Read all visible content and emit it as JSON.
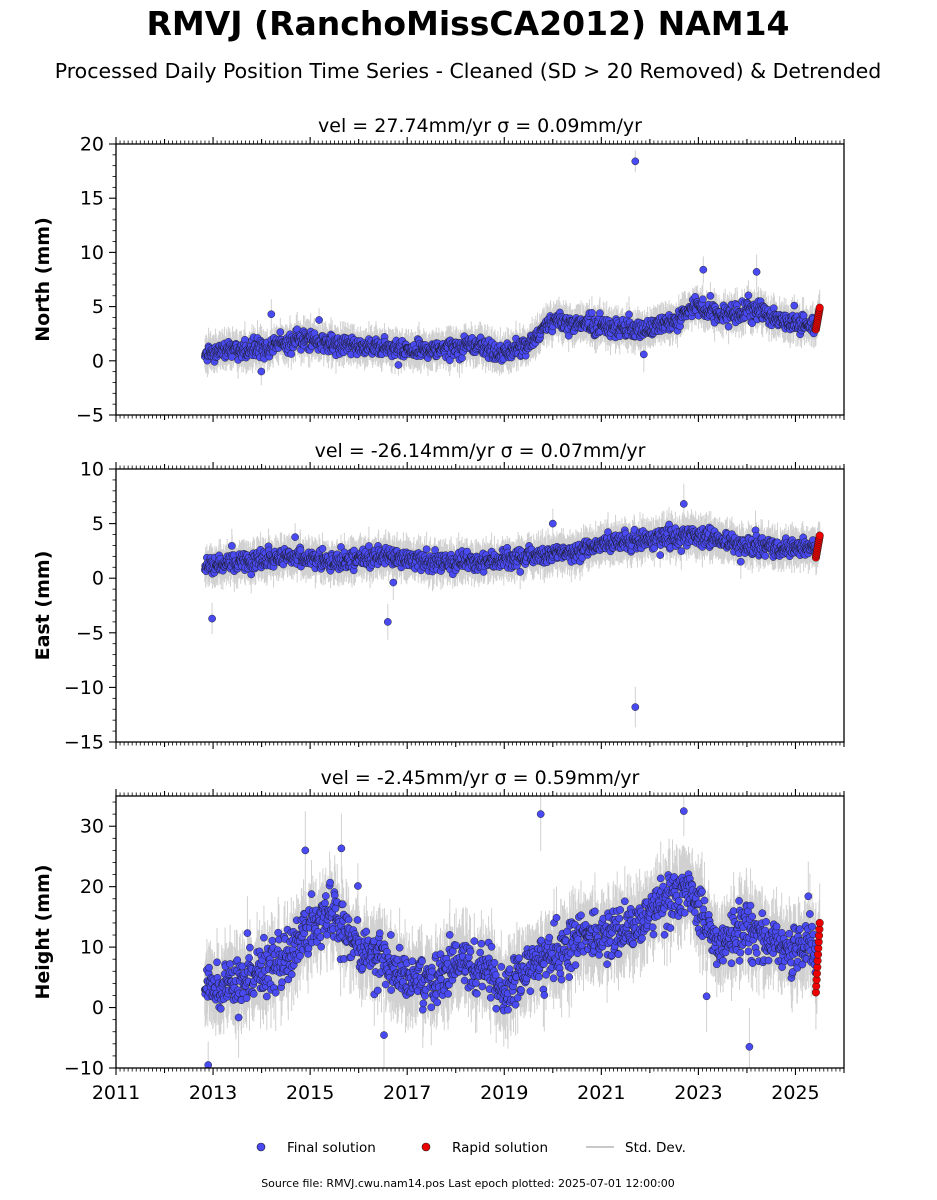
{
  "figure": {
    "title": "RMVJ (RanchoMissCA2012) NAM14",
    "subtitle": "Processed Daily Position Time Series - Cleaned (SD > 20 Removed) & Detrended",
    "footer": "Source file: RMVJ.cwu.nam14.pos  Last epoch plotted: 2025-07-01 12:00:00"
  },
  "legend": {
    "placement": "bottom-center",
    "items": [
      {
        "label": "Final solution",
        "color": "#4a4af2",
        "marker": "circle"
      },
      {
        "label": "Rapid solution",
        "color": "#ee0000",
        "marker": "circle"
      },
      {
        "label": "Std. Dev.",
        "color": "#c8c8c8",
        "marker": "line"
      }
    ]
  },
  "colors": {
    "final": "#4a4af2",
    "rapid": "#ee0000",
    "errorbar": "#9a9a9a",
    "marker_edge": "#1a1a1a",
    "axes": "#000000"
  },
  "chart_data": [
    {
      "type": "scatter",
      "panel": "north",
      "title_vel": "vel = 27.74mm/yr",
      "title_sigma": "σ = 0.09mm/yr",
      "ylabel": "North (mm)",
      "xlim": [
        2011,
        2026
      ],
      "ylim": [
        -5,
        20
      ],
      "yticks": [
        -5,
        0,
        5,
        10,
        15,
        20
      ],
      "grid": false,
      "series": [
        {
          "name": "Final solution",
          "segments": [
            {
              "x": 2012.83,
              "y": 0.5
            },
            {
              "x": 2013.5,
              "y": 1.2
            },
            {
              "x": 2014.0,
              "y": 1.0
            },
            {
              "x": 2014.8,
              "y": 2.0
            },
            {
              "x": 2015.5,
              "y": 1.5
            },
            {
              "x": 2016.5,
              "y": 1.2
            },
            {
              "x": 2017.5,
              "y": 1.0
            },
            {
              "x": 2018.5,
              "y": 1.5
            },
            {
              "x": 2018.9,
              "y": 0.5
            },
            {
              "x": 2019.6,
              "y": 1.8
            },
            {
              "x": 2019.9,
              "y": 3.5
            },
            {
              "x": 2020.5,
              "y": 3.5
            },
            {
              "x": 2021.3,
              "y": 3.0
            },
            {
              "x": 2021.8,
              "y": 3.0
            },
            {
              "x": 2022.5,
              "y": 3.5
            },
            {
              "x": 2022.9,
              "y": 5.0
            },
            {
              "x": 2023.5,
              "y": 4.2
            },
            {
              "x": 2024.2,
              "y": 4.8
            },
            {
              "x": 2024.8,
              "y": 3.5
            },
            {
              "x": 2025.42,
              "y": 3.2
            }
          ],
          "spread": 0.9,
          "count": 1450,
          "outliers": [
            {
              "x": 2021.7,
              "y": 18.4
            },
            {
              "x": 2023.1,
              "y": 8.4
            },
            {
              "x": 2024.2,
              "y": 8.2
            },
            {
              "x": 2014.2,
              "y": 4.3
            }
          ]
        },
        {
          "name": "Rapid solution",
          "x_range": [
            2025.42,
            2025.5
          ],
          "y_range": [
            2.9,
            4.9
          ],
          "count": 12
        }
      ],
      "std_dev": {
        "typical": 1.3
      }
    },
    {
      "type": "scatter",
      "panel": "east",
      "title_vel": "vel = -26.14mm/yr",
      "title_sigma": "σ = 0.07mm/yr",
      "ylabel": "East (mm)",
      "xlim": [
        2011,
        2026
      ],
      "ylim": [
        -15,
        10
      ],
      "yticks": [
        -15,
        -10,
        -5,
        0,
        5,
        10
      ],
      "grid": false,
      "series": [
        {
          "name": "Final solution",
          "segments": [
            {
              "x": 2012.83,
              "y": 1.0
            },
            {
              "x": 2013.5,
              "y": 1.5
            },
            {
              "x": 2014.5,
              "y": 2.0
            },
            {
              "x": 2015.5,
              "y": 1.5
            },
            {
              "x": 2016.5,
              "y": 2.0
            },
            {
              "x": 2017.5,
              "y": 1.5
            },
            {
              "x": 2018.5,
              "y": 1.5
            },
            {
              "x": 2019.5,
              "y": 2.0
            },
            {
              "x": 2020.5,
              "y": 2.5
            },
            {
              "x": 2021.0,
              "y": 3.2
            },
            {
              "x": 2022.0,
              "y": 3.5
            },
            {
              "x": 2023.0,
              "y": 3.8
            },
            {
              "x": 2024.0,
              "y": 3.0
            },
            {
              "x": 2024.8,
              "y": 2.8
            },
            {
              "x": 2025.42,
              "y": 2.8
            }
          ],
          "spread": 0.9,
          "count": 1450,
          "outliers": [
            {
              "x": 2021.7,
              "y": -11.8
            },
            {
              "x": 2012.98,
              "y": -3.7
            },
            {
              "x": 2016.6,
              "y": -4.0
            },
            {
              "x": 2022.7,
              "y": 6.8
            },
            {
              "x": 2020.0,
              "y": 5.0
            }
          ]
        },
        {
          "name": "Rapid solution",
          "x_range": [
            2025.42,
            2025.5
          ],
          "y_range": [
            1.9,
            3.9
          ],
          "count": 12
        }
      ],
      "std_dev": {
        "typical": 1.4
      }
    },
    {
      "type": "scatter",
      "panel": "height",
      "title_vel": "vel = -2.45mm/yr",
      "title_sigma": "σ = 0.59mm/yr",
      "ylabel": "Height (mm)",
      "xlim": [
        2011,
        2026
      ],
      "ylim": [
        -10,
        35
      ],
      "yticks": [
        -10,
        0,
        10,
        20,
        30
      ],
      "xticks": [
        "2011",
        "2013",
        "2015",
        "2017",
        "2019",
        "2021",
        "2023",
        "2025"
      ],
      "grid": false,
      "series": [
        {
          "name": "Final solution",
          "segments": [
            {
              "x": 2012.83,
              "y": 3.0
            },
            {
              "x": 2013.5,
              "y": 4.0
            },
            {
              "x": 2014.5,
              "y": 8.0
            },
            {
              "x": 2015.4,
              "y": 16.0
            },
            {
              "x": 2016.0,
              "y": 10.0
            },
            {
              "x": 2016.8,
              "y": 6.0
            },
            {
              "x": 2017.5,
              "y": 4.0
            },
            {
              "x": 2018.2,
              "y": 8.0
            },
            {
              "x": 2019.0,
              "y": 3.0
            },
            {
              "x": 2019.8,
              "y": 8.0
            },
            {
              "x": 2020.6,
              "y": 12.0
            },
            {
              "x": 2021.5,
              "y": 12.0
            },
            {
              "x": 2022.0,
              "y": 16.0
            },
            {
              "x": 2022.8,
              "y": 20.0
            },
            {
              "x": 2023.4,
              "y": 10.0
            },
            {
              "x": 2024.0,
              "y": 14.0
            },
            {
              "x": 2024.6,
              "y": 10.0
            },
            {
              "x": 2025.42,
              "y": 10.0
            }
          ],
          "spread": 4.5,
          "count": 1450,
          "outliers": [
            {
              "x": 2019.75,
              "y": 32.0
            },
            {
              "x": 2022.7,
              "y": 32.5
            },
            {
              "x": 2014.9,
              "y": 26.0
            },
            {
              "x": 2024.05,
              "y": -6.5
            },
            {
              "x": 2012.9,
              "y": -9.5
            }
          ]
        },
        {
          "name": "Rapid solution",
          "x_range": [
            2025.42,
            2025.5
          ],
          "y_range": [
            2.5,
            14.0
          ],
          "count": 12
        }
      ],
      "std_dev": {
        "typical": 5.0
      }
    }
  ]
}
